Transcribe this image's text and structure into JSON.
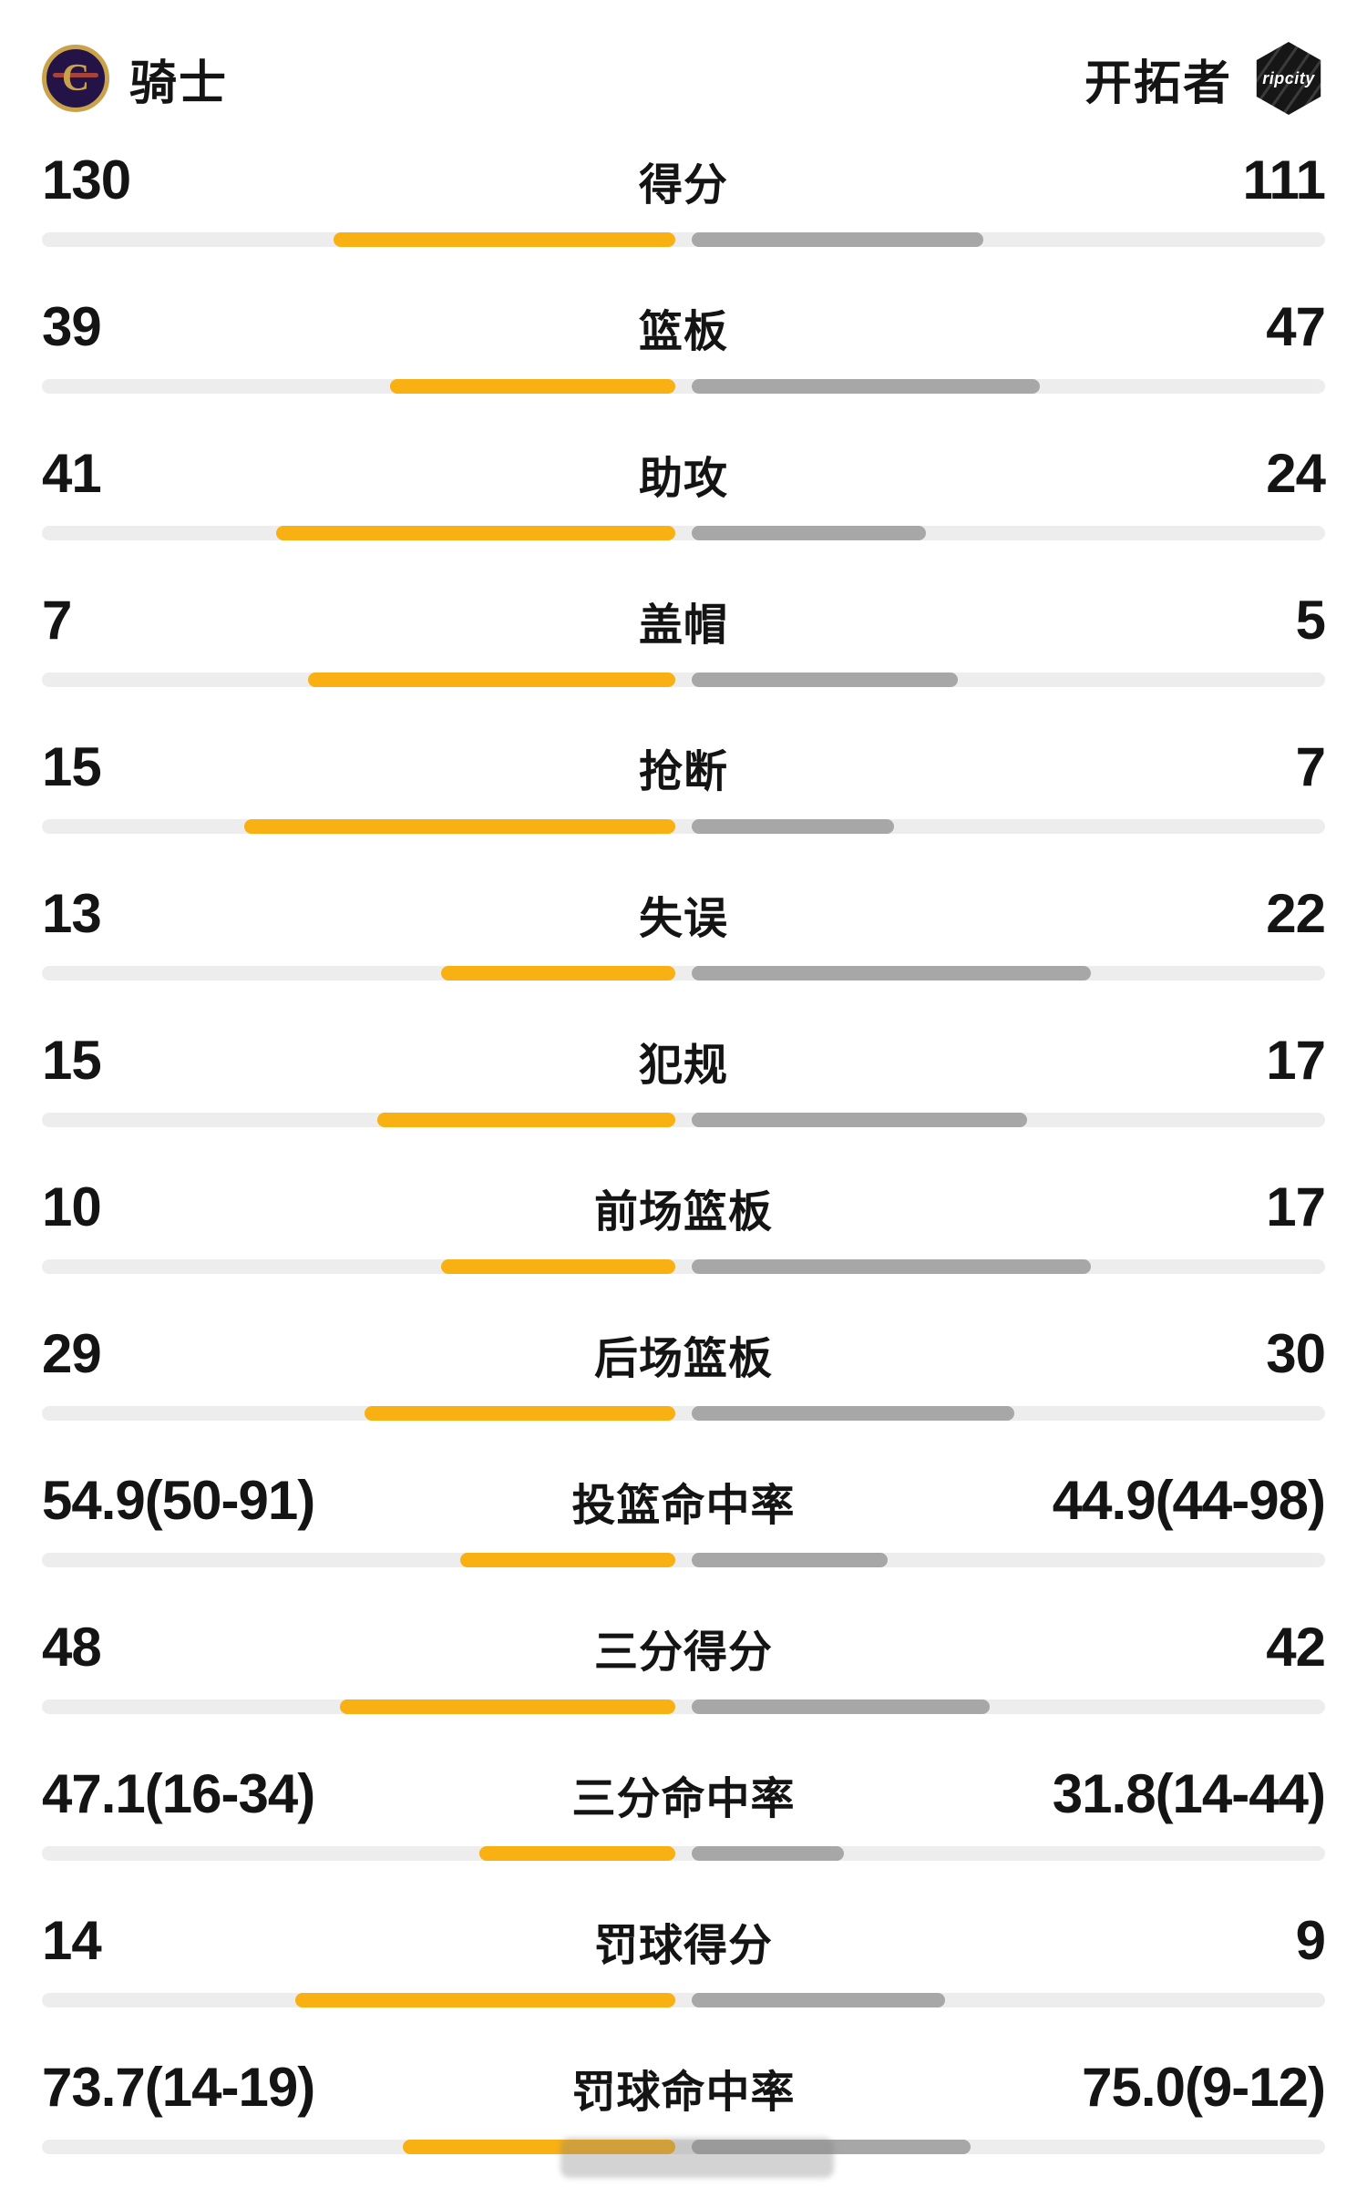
{
  "header": {
    "left_team": {
      "name": "骑士",
      "logo_letter": "C"
    },
    "right_team": {
      "name": "开拓者",
      "logo_text": "ripcity"
    }
  },
  "colors": {
    "bar_left": "#F9B013",
    "bar_right": "#A7A7A7",
    "bar_track": "#EDEDED",
    "text": "#141414",
    "accent_gold": "#C9A24B",
    "cavs_navy": "#231347",
    "blazers_black": "#161616"
  },
  "stats": {
    "rows": [
      {
        "label": "得分",
        "left": "130",
        "right": "111",
        "left_fill": 0.54,
        "right_fill": 0.46
      },
      {
        "label": "篮板",
        "left": "39",
        "right": "47",
        "left_fill": 0.45,
        "right_fill": 0.55
      },
      {
        "label": "助攻",
        "left": "41",
        "right": "24",
        "left_fill": 0.63,
        "right_fill": 0.37
      },
      {
        "label": "盖帽",
        "left": "7",
        "right": "5",
        "left_fill": 0.58,
        "right_fill": 0.42
      },
      {
        "label": "抢断",
        "left": "15",
        "right": "7",
        "left_fill": 0.68,
        "right_fill": 0.32
      },
      {
        "label": "失误",
        "left": "13",
        "right": "22",
        "left_fill": 0.37,
        "right_fill": 0.63
      },
      {
        "label": "犯规",
        "left": "15",
        "right": "17",
        "left_fill": 0.47,
        "right_fill": 0.53
      },
      {
        "label": "前场篮板",
        "left": "10",
        "right": "17",
        "left_fill": 0.37,
        "right_fill": 0.63
      },
      {
        "label": "后场篮板",
        "left": "29",
        "right": "30",
        "left_fill": 0.49,
        "right_fill": 0.51
      },
      {
        "label": "投篮命中率",
        "left": "54.9(50-91)",
        "right": "44.9(44-98)",
        "left_fill": 0.34,
        "right_fill": 0.31
      },
      {
        "label": "三分得分",
        "left": "48",
        "right": "42",
        "left_fill": 0.53,
        "right_fill": 0.47
      },
      {
        "label": "三分命中率",
        "left": "47.1(16-34)",
        "right": "31.8(14-44)",
        "left_fill": 0.31,
        "right_fill": 0.24
      },
      {
        "label": "罚球得分",
        "left": "14",
        "right": "9",
        "left_fill": 0.6,
        "right_fill": 0.4
      },
      {
        "label": "罚球命中率",
        "left": "73.7(14-19)",
        "right": "75.0(9-12)",
        "left_fill": 0.43,
        "right_fill": 0.44
      }
    ]
  }
}
